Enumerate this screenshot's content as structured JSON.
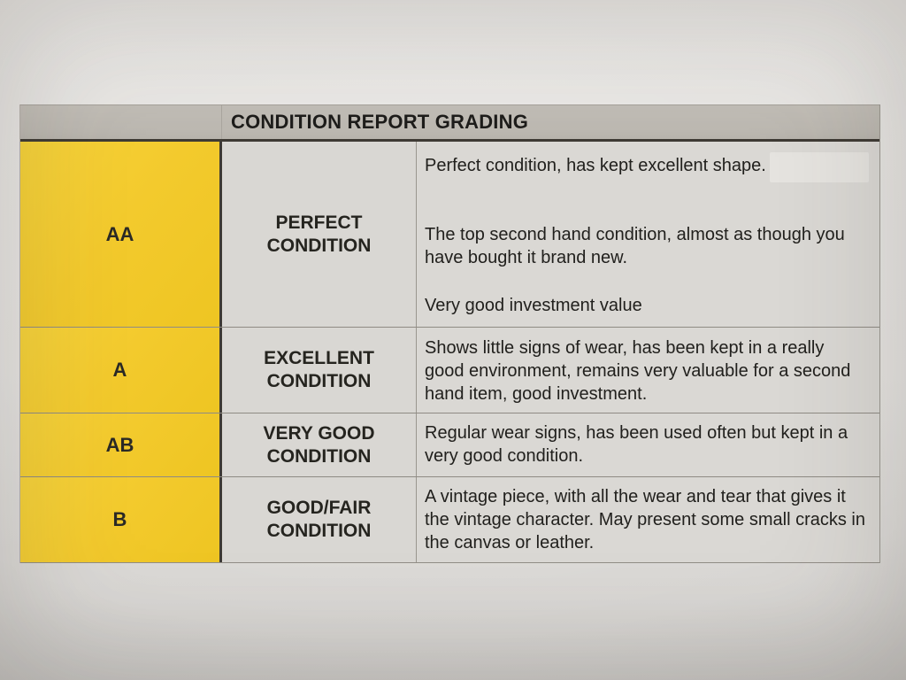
{
  "document": {
    "header": {
      "title": "CONDITION REPORT GRADING"
    },
    "rows": [
      {
        "grade": "AA",
        "condition": "PERFECT\nCONDITION",
        "paragraphs": [
          "Perfect condition, has kept excellent shape.",
          "The top second hand condition, almost as though you have bought it brand new.",
          "Very good investment value"
        ]
      },
      {
        "grade": "A",
        "condition": "EXCELLENT\nCONDITION",
        "paragraphs": [
          "Shows little signs of wear, has been kept in a really good environment, remains very valuable for a second hand item, good investment."
        ]
      },
      {
        "grade": "AB",
        "condition": "VERY GOOD\nCONDITION",
        "paragraphs": [
          "Regular wear signs, has been used often but kept in a very good condition."
        ]
      },
      {
        "grade": "B",
        "condition": "GOOD/FAIR\nCONDITION",
        "paragraphs": [
          "A vintage piece, with all the wear and tear that gives it the vintage character. May present some small cracks in the canvas or leather."
        ]
      }
    ],
    "colors": {
      "grade_column": "#f3ca2d",
      "header_band": "#bcb8b1",
      "cell_background": "#d9d7d3",
      "paper": "#e4e2df",
      "ink": "#232220",
      "heavy_border": "#3e3a34"
    }
  }
}
